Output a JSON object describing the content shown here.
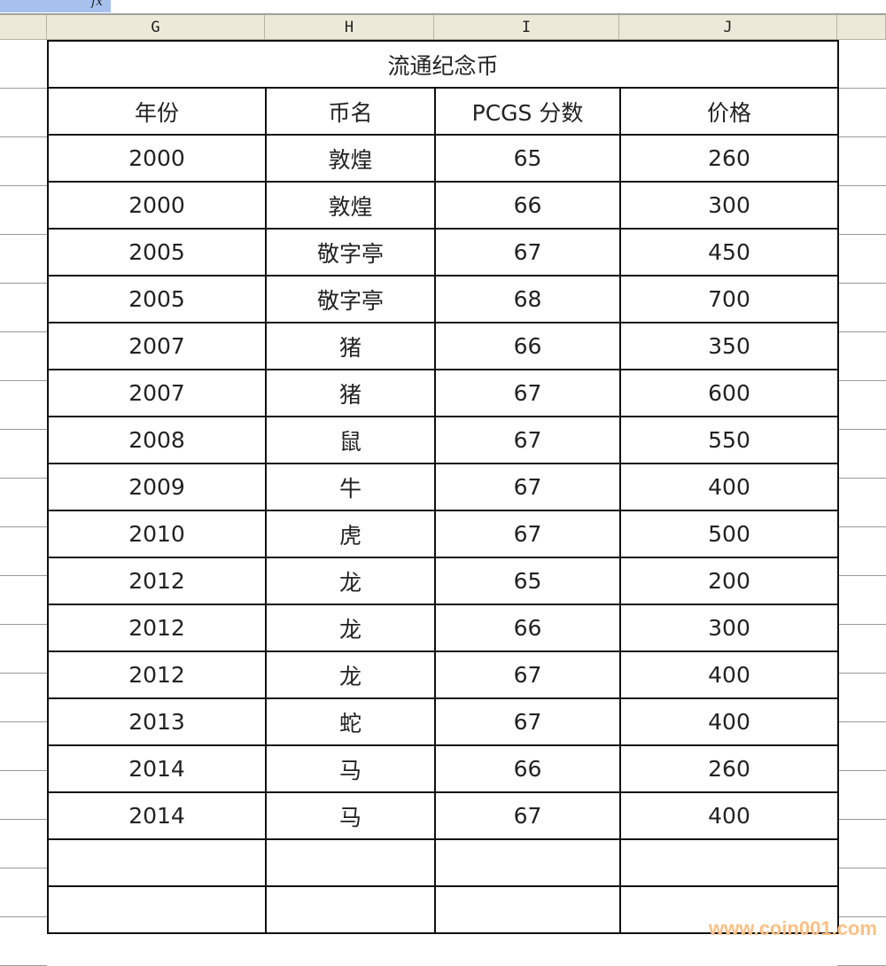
{
  "formula_bar": {
    "fx_label": "fx"
  },
  "columns": [
    "G",
    "H",
    "I",
    "J"
  ],
  "table": {
    "title": "流通纪念币",
    "headers": [
      "年份",
      "币名",
      "PCGS 分数",
      "价格"
    ],
    "rows": [
      [
        "2000",
        "敦煌",
        "65",
        "260"
      ],
      [
        "2000",
        "敦煌",
        "66",
        "300"
      ],
      [
        "2005",
        "敬字亭",
        "67",
        "450"
      ],
      [
        "2005",
        "敬字亭",
        "68",
        "700"
      ],
      [
        "2007",
        "猪",
        "66",
        "350"
      ],
      [
        "2007",
        "猪",
        "67",
        "600"
      ],
      [
        "2008",
        "鼠",
        "67",
        "550"
      ],
      [
        "2009",
        "牛",
        "67",
        "400"
      ],
      [
        "2010",
        "虎",
        "67",
        "500"
      ],
      [
        "2012",
        "龙",
        "65",
        "200"
      ],
      [
        "2012",
        "龙",
        "66",
        "300"
      ],
      [
        "2012",
        "龙",
        "67",
        "400"
      ],
      [
        "2013",
        "蛇",
        "67",
        "400"
      ],
      [
        "2014",
        "马",
        "66",
        "260"
      ],
      [
        "2014",
        "马",
        "67",
        "400"
      ]
    ]
  },
  "watermark": "www.coin001.com"
}
